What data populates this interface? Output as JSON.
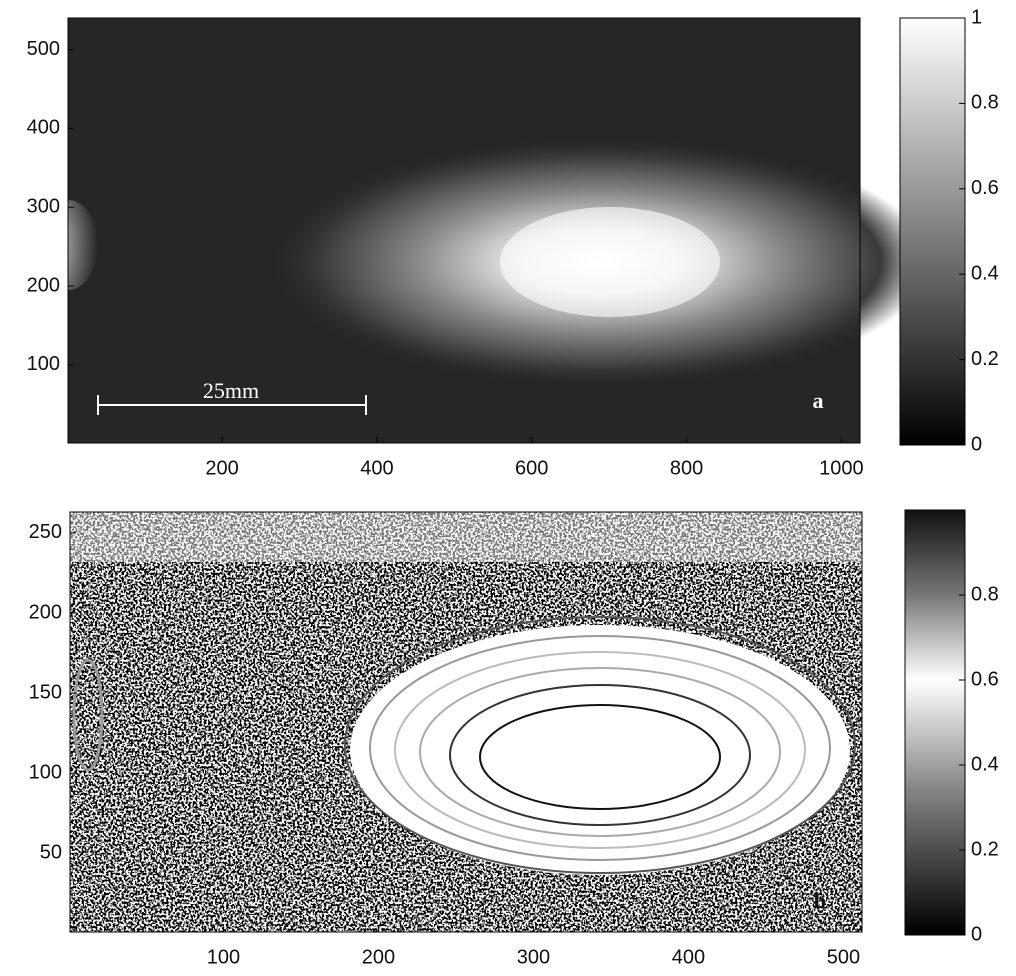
{
  "chart_data": [
    {
      "type": "image",
      "xlim": [
        1,
        1024
      ],
      "ylim": [
        1,
        540
      ],
      "xticks": [
        200,
        400,
        600,
        800,
        1000
      ],
      "yticks": [
        100,
        200,
        300,
        400,
        500
      ],
      "scale_bar_label": "25mm",
      "panel_label": "a",
      "colorbar": {
        "lim": [
          0,
          1
        ],
        "ticks": [
          0,
          0.2,
          0.4,
          0.6,
          0.8,
          1
        ]
      }
    },
    {
      "type": "image",
      "xlim": [
        1,
        512
      ],
      "ylim": [
        1,
        263
      ],
      "xticks": [
        100,
        200,
        300,
        400,
        500
      ],
      "yticks": [
        50,
        100,
        150,
        200,
        250
      ],
      "panel_label": "b",
      "colorbar": {
        "lim": [
          0,
          1
        ],
        "ticks": [
          0,
          0.2,
          0.4,
          0.6,
          0.8
        ]
      }
    }
  ]
}
